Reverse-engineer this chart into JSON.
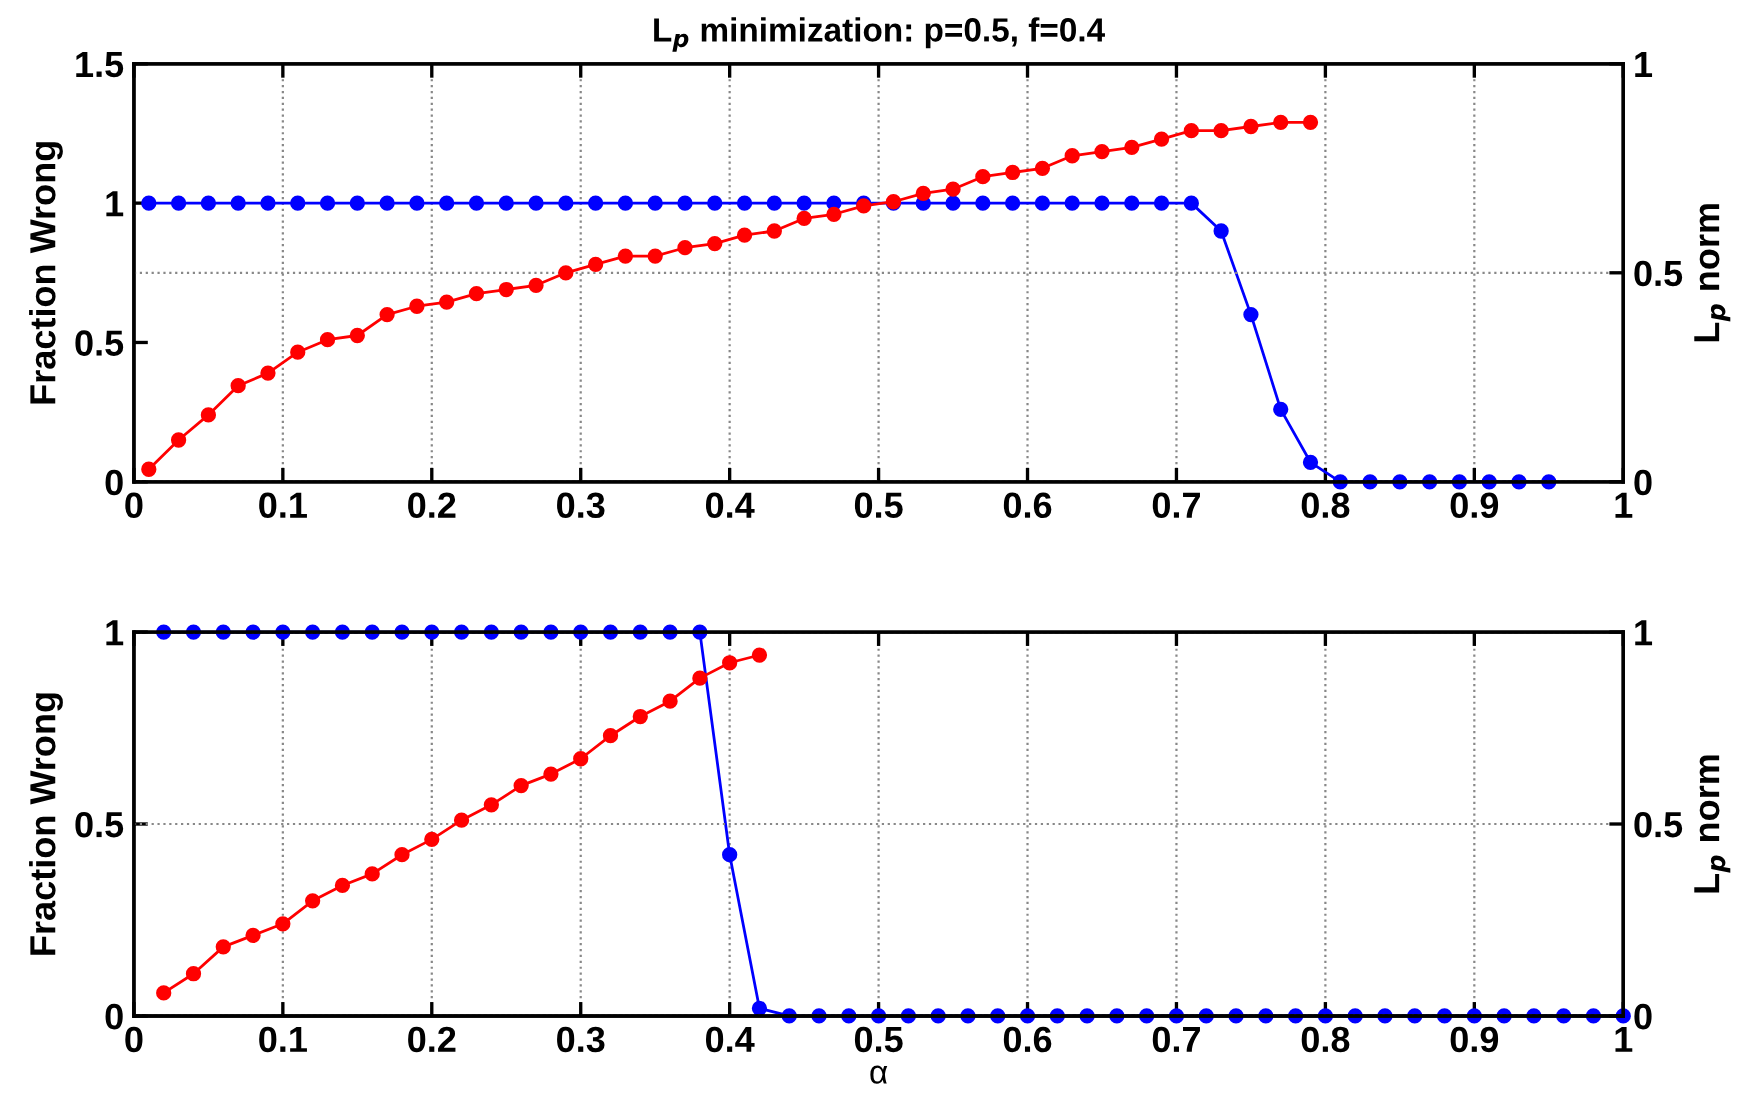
{
  "chart_data": [
    {
      "type": "line",
      "title": "L$_{p}$ minimization: p=0.5, f=0.4",
      "ylabel": "Fraction Wrong",
      "y2label": "L$_{p}$ norm",
      "xlim": [
        0,
        1
      ],
      "xticks": [
        0,
        0.1,
        0.2,
        0.3,
        0.4,
        0.5,
        0.6,
        0.7,
        0.8,
        0.9,
        1
      ],
      "ylim": [
        0,
        1.5
      ],
      "yticks": [
        0,
        0.5,
        1,
        1.5
      ],
      "y2lim": [
        0,
        1
      ],
      "y2ticks": [
        0,
        0.5,
        1
      ],
      "grid": true,
      "marker": "circle",
      "line_style": "solid",
      "series": [
        {
          "color": "#0000ff",
          "x": [
            0.01,
            0.03,
            0.05,
            0.07,
            0.09,
            0.11,
            0.13,
            0.15,
            0.17,
            0.19,
            0.21,
            0.23,
            0.25,
            0.27,
            0.29,
            0.31,
            0.33,
            0.35,
            0.37,
            0.39,
            0.41,
            0.43,
            0.45,
            0.47,
            0.49,
            0.51,
            0.53,
            0.55,
            0.57,
            0.59,
            0.61,
            0.63,
            0.65,
            0.67,
            0.69,
            0.71,
            0.73,
            0.75,
            0.77,
            0.79,
            0.81,
            0.83,
            0.85,
            0.87,
            0.89,
            0.91,
            0.93,
            0.95
          ],
          "values": [
            1,
            1,
            1,
            1,
            1,
            1,
            1,
            1,
            1,
            1,
            1,
            1,
            1,
            1,
            1,
            1,
            1,
            1,
            1,
            1,
            1,
            1,
            1,
            1,
            1,
            1,
            1,
            1,
            1,
            1,
            1,
            1,
            1,
            1,
            1,
            1,
            0.9,
            0.6,
            0.26,
            0.07,
            0,
            0,
            0,
            0,
            0,
            0,
            0,
            0
          ]
        },
        {
          "color": "#ff0000",
          "axis": "y2",
          "x": [
            0.01,
            0.03,
            0.05,
            0.07,
            0.09,
            0.11,
            0.13,
            0.15,
            0.17,
            0.19,
            0.21,
            0.23,
            0.25,
            0.27,
            0.29,
            0.31,
            0.33,
            0.35,
            0.37,
            0.39,
            0.41,
            0.43,
            0.45,
            0.47,
            0.49,
            0.51,
            0.53,
            0.55,
            0.57,
            0.59,
            0.61,
            0.63,
            0.65,
            0.67,
            0.69,
            0.71,
            0.73,
            0.75,
            0.77,
            0.79
          ],
          "values": [
            0.03,
            0.1,
            0.16,
            0.23,
            0.26,
            0.31,
            0.34,
            0.35,
            0.4,
            0.42,
            0.43,
            0.45,
            0.46,
            0.47,
            0.5,
            0.52,
            0.54,
            0.54,
            0.56,
            0.57,
            0.59,
            0.6,
            0.63,
            0.64,
            0.66,
            0.67,
            0.69,
            0.7,
            0.73,
            0.74,
            0.75,
            0.78,
            0.79,
            0.8,
            0.82,
            0.84,
            0.84,
            0.85,
            0.86,
            0.86
          ]
        }
      ]
    },
    {
      "type": "line",
      "xlabel": "α",
      "ylabel": "Fraction Wrong",
      "y2label": "L$_{p}$ norm",
      "xlim": [
        0,
        1
      ],
      "xticks": [
        0,
        0.1,
        0.2,
        0.3,
        0.4,
        0.5,
        0.6,
        0.7,
        0.8,
        0.9,
        1
      ],
      "ylim": [
        0,
        1
      ],
      "yticks": [
        0,
        0.5,
        1
      ],
      "y2lim": [
        0,
        1
      ],
      "y2ticks": [
        0,
        0.5,
        1
      ],
      "grid": true,
      "marker": "circle",
      "line_style": "solid",
      "series": [
        {
          "color": "#0000ff",
          "x": [
            0.02,
            0.04,
            0.06,
            0.08,
            0.1,
            0.12,
            0.14,
            0.16,
            0.18,
            0.2,
            0.22,
            0.24,
            0.26,
            0.28,
            0.3,
            0.32,
            0.34,
            0.36,
            0.38,
            0.4,
            0.42,
            0.44,
            0.46,
            0.48,
            0.5,
            0.52,
            0.54,
            0.56,
            0.58,
            0.6,
            0.62,
            0.64,
            0.66,
            0.68,
            0.7,
            0.72,
            0.74,
            0.76,
            0.78,
            0.8,
            0.82,
            0.84,
            0.86,
            0.88,
            0.9,
            0.92,
            0.94,
            0.96,
            0.98,
            1.0
          ],
          "values": [
            1,
            1,
            1,
            1,
            1,
            1,
            1,
            1,
            1,
            1,
            1,
            1,
            1,
            1,
            1,
            1,
            1,
            1,
            1,
            0.42,
            0.02,
            0,
            0,
            0,
            0,
            0,
            0,
            0,
            0,
            0,
            0,
            0,
            0,
            0,
            0,
            0,
            0,
            0,
            0,
            0,
            0,
            0,
            0,
            0,
            0,
            0,
            0,
            0,
            0,
            0
          ]
        },
        {
          "color": "#ff0000",
          "axis": "y2",
          "x": [
            0.02,
            0.04,
            0.06,
            0.08,
            0.1,
            0.12,
            0.14,
            0.16,
            0.18,
            0.2,
            0.22,
            0.24,
            0.26,
            0.28,
            0.3,
            0.32,
            0.34,
            0.36,
            0.38,
            0.4,
            0.42
          ],
          "values": [
            0.06,
            0.11,
            0.18,
            0.21,
            0.24,
            0.3,
            0.34,
            0.37,
            0.42,
            0.46,
            0.51,
            0.55,
            0.6,
            0.63,
            0.67,
            0.73,
            0.78,
            0.82,
            0.88,
            0.92,
            0.94
          ]
        }
      ]
    }
  ]
}
